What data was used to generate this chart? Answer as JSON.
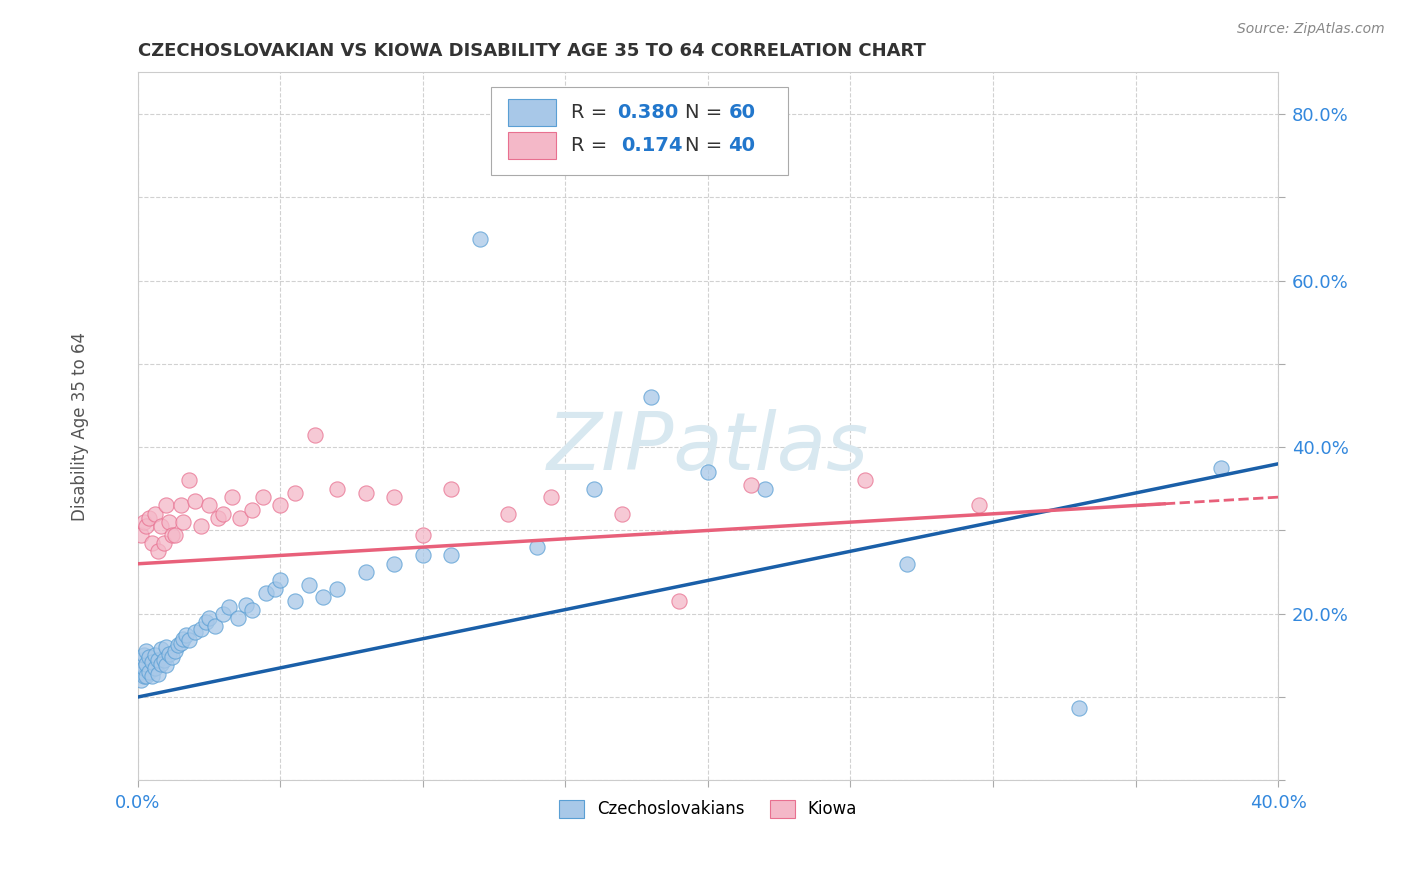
{
  "title": "CZECHOSLOVAKIAN VS KIOWA DISABILITY AGE 35 TO 64 CORRELATION CHART",
  "source": "Source: ZipAtlas.com",
  "ylabel_label": "Disability Age 35 to 64",
  "x_min": 0.0,
  "x_max": 0.4,
  "y_min": 0.0,
  "y_max": 0.85,
  "blue_color": "#a8c8e8",
  "blue_edge_color": "#5a9fd4",
  "pink_color": "#f4b8c8",
  "pink_edge_color": "#e87090",
  "blue_line_color": "#1a5fa8",
  "pink_line_color": "#e8607a",
  "dashed_line_color": "#e8607a",
  "blue_label": "Czechoslovakians",
  "pink_label": "Kiowa",
  "blue_scatter_x": [
    0.001,
    0.001,
    0.001,
    0.002,
    0.002,
    0.002,
    0.003,
    0.003,
    0.003,
    0.004,
    0.004,
    0.005,
    0.005,
    0.006,
    0.006,
    0.007,
    0.007,
    0.008,
    0.008,
    0.009,
    0.01,
    0.01,
    0.011,
    0.012,
    0.013,
    0.014,
    0.015,
    0.016,
    0.017,
    0.018,
    0.02,
    0.022,
    0.024,
    0.025,
    0.027,
    0.03,
    0.032,
    0.035,
    0.038,
    0.04,
    0.045,
    0.048,
    0.05,
    0.055,
    0.06,
    0.065,
    0.07,
    0.08,
    0.09,
    0.1,
    0.11,
    0.12,
    0.14,
    0.16,
    0.18,
    0.2,
    0.22,
    0.27,
    0.33,
    0.38
  ],
  "blue_scatter_y": [
    0.12,
    0.13,
    0.145,
    0.125,
    0.135,
    0.15,
    0.125,
    0.14,
    0.155,
    0.13,
    0.148,
    0.125,
    0.142,
    0.135,
    0.15,
    0.128,
    0.145,
    0.14,
    0.158,
    0.145,
    0.138,
    0.16,
    0.152,
    0.148,
    0.155,
    0.162,
    0.165,
    0.17,
    0.175,
    0.168,
    0.178,
    0.182,
    0.19,
    0.195,
    0.185,
    0.2,
    0.208,
    0.195,
    0.21,
    0.205,
    0.225,
    0.23,
    0.24,
    0.215,
    0.235,
    0.22,
    0.23,
    0.25,
    0.26,
    0.27,
    0.27,
    0.65,
    0.28,
    0.35,
    0.46,
    0.37,
    0.35,
    0.26,
    0.087,
    0.375
  ],
  "pink_scatter_x": [
    0.001,
    0.002,
    0.003,
    0.004,
    0.005,
    0.006,
    0.007,
    0.008,
    0.009,
    0.01,
    0.011,
    0.012,
    0.013,
    0.015,
    0.016,
    0.018,
    0.02,
    0.022,
    0.025,
    0.028,
    0.03,
    0.033,
    0.036,
    0.04,
    0.044,
    0.05,
    0.055,
    0.062,
    0.07,
    0.08,
    0.09,
    0.1,
    0.11,
    0.13,
    0.145,
    0.17,
    0.19,
    0.215,
    0.255,
    0.295
  ],
  "pink_scatter_y": [
    0.295,
    0.31,
    0.305,
    0.315,
    0.285,
    0.32,
    0.275,
    0.305,
    0.285,
    0.33,
    0.31,
    0.295,
    0.295,
    0.33,
    0.31,
    0.36,
    0.335,
    0.305,
    0.33,
    0.315,
    0.32,
    0.34,
    0.315,
    0.325,
    0.34,
    0.33,
    0.345,
    0.415,
    0.35,
    0.345,
    0.34,
    0.295,
    0.35,
    0.32,
    0.34,
    0.32,
    0.215,
    0.355,
    0.36,
    0.33
  ],
  "background_color": "#ffffff",
  "grid_color": "#cccccc",
  "watermark_color": "#d8e8f0"
}
